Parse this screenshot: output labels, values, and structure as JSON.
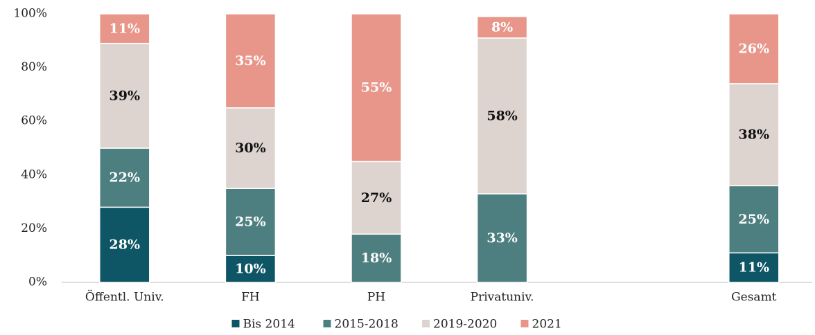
{
  "chart_data": {
    "type": "stacked_bar",
    "categories": [
      "Öffentl. Univ.",
      "FH",
      "PH",
      "Privatuniv.",
      null,
      "Gesamt"
    ],
    "series": [
      {
        "name": "Bis 2014",
        "color": "#0e5566",
        "values": [
          28,
          10,
          0,
          0,
          null,
          11
        ],
        "value_labels": [
          "28%",
          "10%",
          null,
          null,
          null,
          "11%"
        ]
      },
      {
        "name": "2015-2018",
        "color": "#4e7f80",
        "values": [
          22,
          25,
          18,
          33,
          null,
          25
        ],
        "value_labels": [
          "22%",
          "25%",
          "18%",
          "33%",
          null,
          "25%"
        ]
      },
      {
        "name": "2019-2020",
        "color": "#ddd3cf",
        "values": [
          39,
          30,
          27,
          58,
          null,
          38
        ],
        "value_labels": [
          "39%",
          "30%",
          "27%",
          "58%",
          null,
          "38%"
        ]
      },
      {
        "name": "2021",
        "color": "#e8968a",
        "values": [
          11,
          35,
          55,
          8,
          null,
          26
        ],
        "value_labels": [
          "11%",
          "35%",
          "55%",
          "8%",
          null,
          "26%"
        ]
      }
    ],
    "ylim": [
      0,
      100
    ],
    "yticks": [
      {
        "value": 0,
        "label": "0%"
      },
      {
        "value": 20,
        "label": "20%"
      },
      {
        "value": 40,
        "label": "40%"
      },
      {
        "value": 60,
        "label": "60%"
      },
      {
        "value": 80,
        "label": "80%"
      },
      {
        "value": 100,
        "label": "100%"
      }
    ],
    "legend": "bottom"
  }
}
